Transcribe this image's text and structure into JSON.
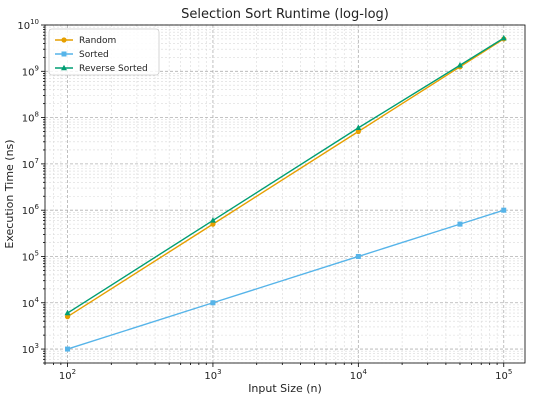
{
  "chart_data": {
    "type": "line",
    "title": "Selection Sort Runtime (log-log)",
    "xlabel": "Input Size (n)",
    "ylabel": "Execution Time (ns)",
    "xscale": "log",
    "yscale": "log",
    "xlim": [
      70,
      140000
    ],
    "ylim": [
      500,
      10000000000
    ],
    "x_ticks": [
      100,
      1000,
      10000,
      100000
    ],
    "x_tick_labels": [
      {
        "base": "10",
        "exp": "2"
      },
      {
        "base": "10",
        "exp": "3"
      },
      {
        "base": "10",
        "exp": "4"
      },
      {
        "base": "10",
        "exp": "5"
      }
    ],
    "y_ticks": [
      1000,
      10000,
      100000,
      1000000,
      10000000,
      100000000,
      1000000000,
      10000000000
    ],
    "y_tick_labels": [
      {
        "base": "10",
        "exp": "3"
      },
      {
        "base": "10",
        "exp": "4"
      },
      {
        "base": "10",
        "exp": "5"
      },
      {
        "base": "10",
        "exp": "6"
      },
      {
        "base": "10",
        "exp": "7"
      },
      {
        "base": "10",
        "exp": "8"
      },
      {
        "base": "10",
        "exp": "9"
      },
      {
        "base": "10",
        "exp": "10"
      }
    ],
    "grid": true,
    "legend_position": "top-left",
    "x": [
      100,
      1000,
      10000,
      50000,
      100000
    ],
    "series": [
      {
        "name": "Random",
        "values": [
          5000,
          500000,
          50000000,
          1250000000,
          5000000000
        ],
        "color": "#E69F00",
        "marker": "circle"
      },
      {
        "name": "Sorted",
        "values": [
          1000,
          10000,
          100000,
          500000,
          1000000
        ],
        "color": "#56B4E9",
        "marker": "square"
      },
      {
        "name": "Reverse Sorted",
        "values": [
          6000,
          600000,
          60000000,
          1350000000,
          5200000000
        ],
        "color": "#009E73",
        "marker": "triangle"
      }
    ]
  }
}
